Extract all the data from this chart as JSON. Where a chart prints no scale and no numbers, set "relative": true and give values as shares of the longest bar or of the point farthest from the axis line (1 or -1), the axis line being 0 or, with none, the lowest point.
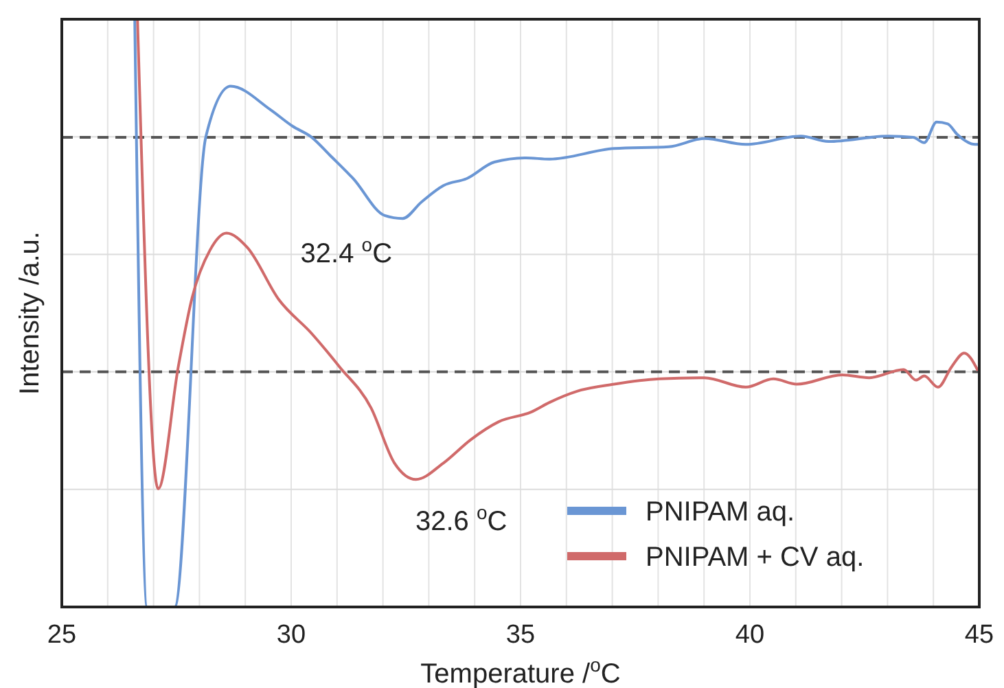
{
  "chart_data": {
    "type": "line",
    "relative": true,
    "xlabel": "Temperature /$^{o}$C",
    "ylabel": "Intensity /a.u.",
    "xlim": [
      25,
      45
    ],
    "xticks": [
      25,
      {
        "value": 26,
        "label": null
      },
      {
        "value": 27,
        "label": null
      },
      {
        "value": 28,
        "label": null
      },
      {
        "value": 29,
        "label": null
      },
      30,
      {
        "value": 31,
        "label": null
      },
      {
        "value": 32,
        "label": null
      },
      {
        "value": 33,
        "label": null
      },
      {
        "value": 34,
        "label": null
      },
      35,
      {
        "value": 36,
        "label": null
      },
      {
        "value": 37,
        "label": null
      },
      {
        "value": 38,
        "label": null
      },
      {
        "value": 39,
        "label": null
      },
      40,
      {
        "value": 41,
        "label": null
      },
      {
        "value": 42,
        "label": null
      },
      {
        "value": 43,
        "label": null
      },
      {
        "value": 44,
        "label": null
      },
      45
    ],
    "grid": true,
    "legend": "bottom right",
    "line_style": "solid",
    "marker": "none",
    "ref_lines": [
      {
        "axis": "y",
        "value": 0.799,
        "color": "#555555",
        "line_style": "dashed"
      },
      {
        "axis": "y",
        "value": 0.4,
        "color": "#555555",
        "line_style": "dashed"
      }
    ],
    "annotations": [
      {
        "text": "32.4 $^{o}$C",
        "x": 32.4,
        "y": 0.661
      },
      {
        "text": "32.6 $^{o}$C",
        "x": 32.6,
        "y": 0.217
      }
    ],
    "series": [
      {
        "name": "PNIPAM aq.",
        "color": "#6a96d4",
        "x": [
          26.59,
          26.86,
          27.46,
          28.14,
          28.68,
          29.55,
          30.03,
          30.45,
          30.84,
          31.35,
          32.04,
          32.43,
          32.84,
          33.32,
          33.83,
          34.43,
          35.12,
          35.63,
          37.04,
          38.23,
          39.01,
          39.91,
          41.11,
          41.71,
          43.02,
          43.56,
          43.8,
          44.07,
          44.31,
          44.52,
          44.91,
          45
        ],
        "values": [
          1,
          0,
          0,
          0.8,
          0.886,
          0.846,
          0.818,
          0.799,
          0.769,
          0.729,
          0.666,
          0.661,
          0.689,
          0.717,
          0.729,
          0.757,
          0.764,
          0.762,
          0.78,
          0.783,
          0.797,
          0.787,
          0.801,
          0.792,
          0.801,
          0.799,
          0.79,
          0.825,
          0.822,
          0.804,
          0.787,
          0.787
        ]
      },
      {
        "name": "PNIPAM + CV aq.",
        "color": "#d06a6a",
        "x": [
          26.65,
          27.1,
          27.54,
          27.84,
          28.23,
          28.59,
          29.04,
          29.73,
          30.45,
          31.05,
          31.74,
          32.25,
          32.72,
          33.32,
          33.92,
          34.52,
          35.24,
          35.63,
          36.23,
          37.04,
          38.02,
          39.01,
          39.91,
          40.51,
          41.02,
          42.01,
          42.6,
          43.35,
          43.62,
          43.8,
          44.1,
          44.4,
          44.67,
          44.97
        ],
        "values": [
          1,
          0.201,
          0.409,
          0.526,
          0.607,
          0.636,
          0.612,
          0.523,
          0.465,
          0.409,
          0.339,
          0.245,
          0.217,
          0.245,
          0.285,
          0.315,
          0.332,
          0.348,
          0.367,
          0.379,
          0.388,
          0.39,
          0.374,
          0.388,
          0.379,
          0.395,
          0.39,
          0.404,
          0.386,
          0.393,
          0.374,
          0.409,
          0.432,
          0.402
        ]
      }
    ]
  }
}
